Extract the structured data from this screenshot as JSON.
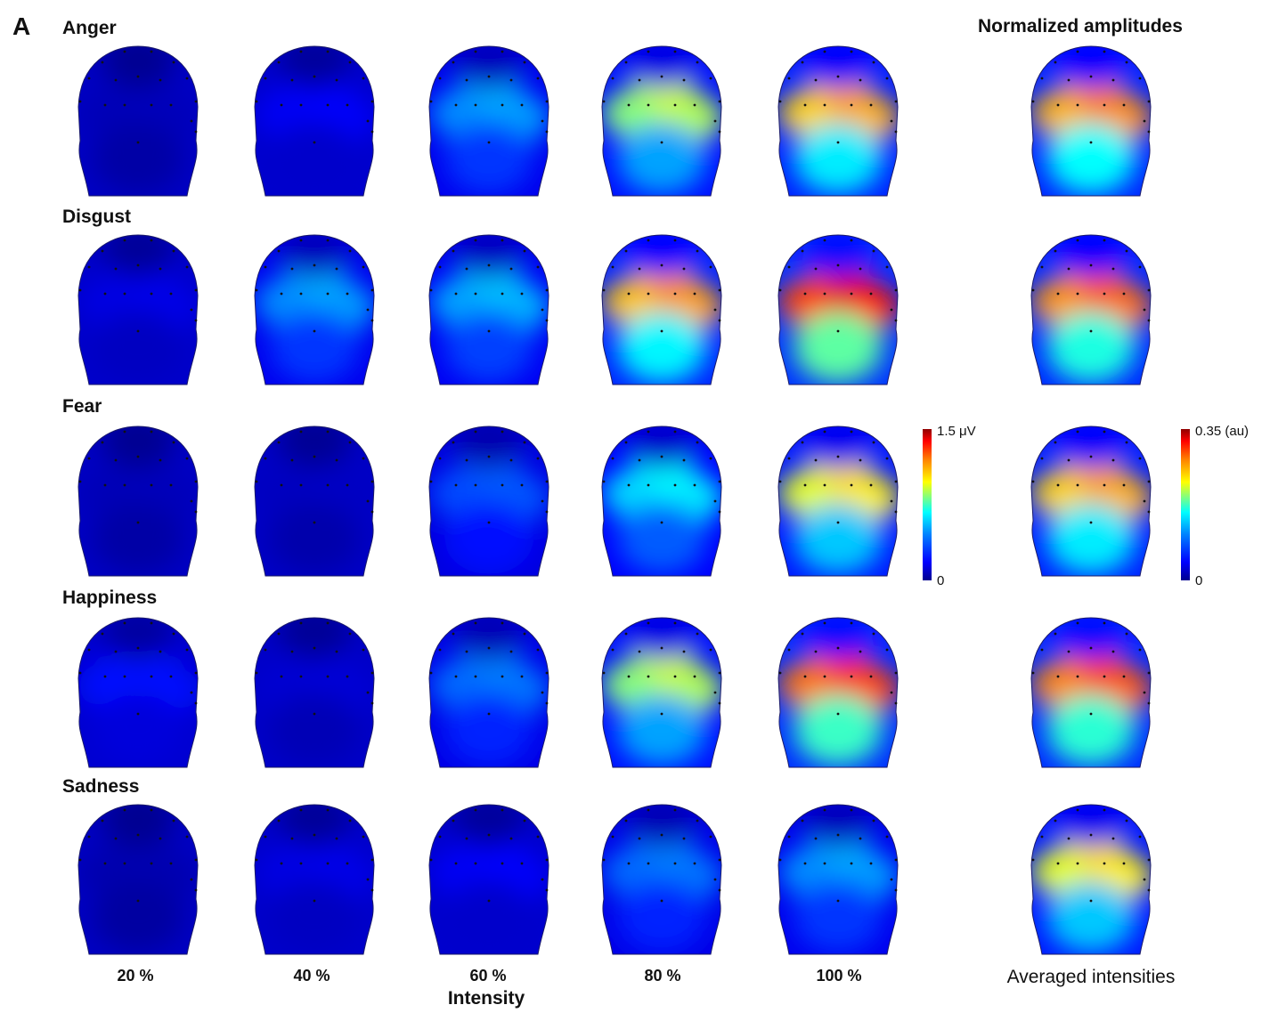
{
  "panel_letter": "A",
  "right_title": "Normalized amplitudes",
  "axis_title": "Intensity",
  "averaged_label": "Averaged intensities",
  "columns": [
    "20 %",
    "40 %",
    "60 %",
    "80 %",
    "100 %"
  ],
  "rows": [
    {
      "label": "Anger",
      "maps": [
        0.05,
        0.12,
        0.35,
        0.62,
        0.78
      ],
      "avg": 0.82
    },
    {
      "label": "Disgust",
      "maps": [
        0.1,
        0.35,
        0.38,
        0.8,
        0.95
      ],
      "avg": 0.86
    },
    {
      "label": "Fear",
      "maps": [
        0.05,
        0.06,
        0.25,
        0.45,
        0.7
      ],
      "avg": 0.78
    },
    {
      "label": "Happiness",
      "maps": [
        0.15,
        0.08,
        0.3,
        0.62,
        0.9
      ],
      "avg": 0.88
    },
    {
      "label": "Sadness",
      "maps": [
        0.04,
        0.1,
        0.12,
        0.3,
        0.35
      ],
      "avg": 0.7
    }
  ],
  "colorbar_uv": {
    "max_label": "1.5 μV",
    "min_label": "0"
  },
  "colorbar_au": {
    "max_label": "0.35 (au)",
    "min_label": "0"
  }
}
